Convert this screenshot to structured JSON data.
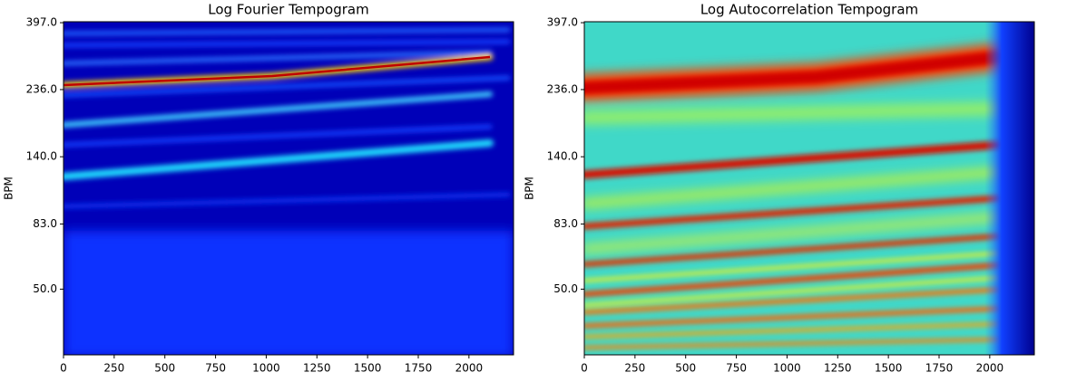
{
  "chart_data": [
    {
      "type": "heatmap",
      "title": "Log Fourier Tempogram",
      "ylabel": "BPM",
      "log_y": true,
      "xlim": [
        0,
        2220
      ],
      "xticks": [
        0,
        250,
        500,
        750,
        1000,
        1250,
        1500,
        1750,
        2000
      ],
      "ylim": [
        30,
        400
      ],
      "yticks": [
        {
          "value": 397,
          "label": "397.0"
        },
        {
          "value": 236,
          "label": "236.0"
        },
        {
          "value": 140,
          "label": "140.0"
        },
        {
          "value": 83,
          "label": "83.0"
        },
        {
          "value": 50,
          "label": "50.0"
        }
      ]
    },
    {
      "type": "heatmap",
      "title": "Log Autocorrelation Tempogram",
      "ylabel": "BPM",
      "log_y": true,
      "xlim": [
        0,
        2220
      ],
      "xticks": [
        0,
        250,
        500,
        750,
        1000,
        1250,
        1500,
        1750,
        2000
      ],
      "ylim": [
        30,
        400
      ],
      "yticks": [
        {
          "value": 397,
          "label": "397.0"
        },
        {
          "value": 236,
          "label": "236.0"
        },
        {
          "value": 140,
          "label": "140.0"
        },
        {
          "value": 83,
          "label": "83.0"
        },
        {
          "value": 50,
          "label": "50.0"
        }
      ]
    }
  ]
}
